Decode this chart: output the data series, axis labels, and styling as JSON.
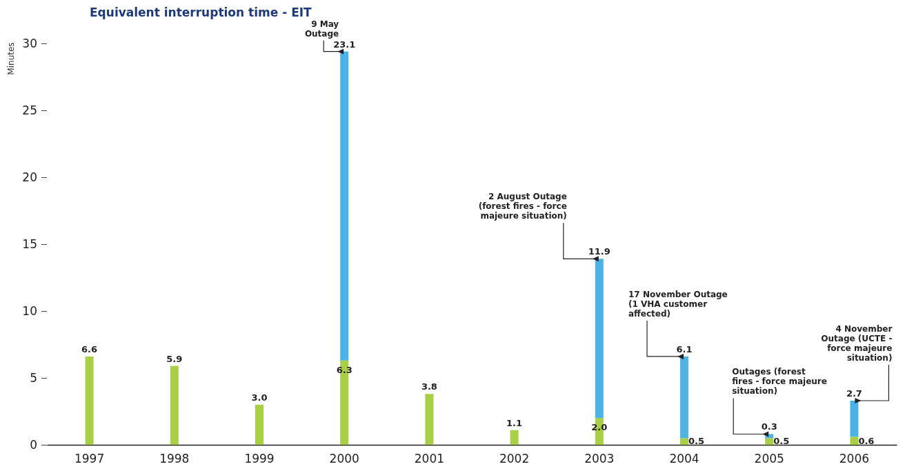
{
  "chart_data": {
    "type": "bar",
    "title": "Equivalent interruption time - EIT",
    "ylabel": "Minutes",
    "stacked": true,
    "grid": false,
    "categories": [
      "1997",
      "1998",
      "1999",
      "2000",
      "2001",
      "2002",
      "2003",
      "2004",
      "2005",
      "2006"
    ],
    "series": [
      {
        "color": "#a8cf45",
        "values": [
          6.6,
          5.9,
          3.0,
          6.3,
          3.8,
          1.1,
          2.0,
          0.5,
          0.5,
          0.6
        ],
        "value_labels": [
          "6.6",
          "5.9",
          "3.0",
          "6.3",
          "3.8",
          "1.1",
          "2.0",
          "0.5",
          "0.5",
          "0.6"
        ]
      },
      {
        "color": "#4db3e6",
        "values": [
          null,
          null,
          null,
          23.1,
          null,
          null,
          11.9,
          6.1,
          0.3,
          2.7
        ],
        "value_labels": [
          null,
          null,
          null,
          "23.1",
          null,
          null,
          "11.9",
          "6.1",
          "0.3",
          "2.7"
        ]
      }
    ],
    "ylim": [
      0,
      30
    ],
    "yticks": [
      0,
      5,
      10,
      15,
      20,
      25,
      30
    ],
    "annotations": [
      {
        "text": "9 May Outage",
        "x": "2000",
        "y": 29.4
      },
      {
        "text": "2 August Outage (forest fires - force majeure situation)",
        "x": "2003",
        "y": 13.9
      },
      {
        "text": "17 November Outage (1 VHA customer affected)",
        "x": "2004",
        "y": 6.6
      },
      {
        "text": "Outages (forest fires - force majeure situation)",
        "x": "2005",
        "y": 0.8
      },
      {
        "text": "4 November Outage (UCTE - force majeure situation)",
        "x": "2006",
        "y": 3.3
      }
    ]
  }
}
